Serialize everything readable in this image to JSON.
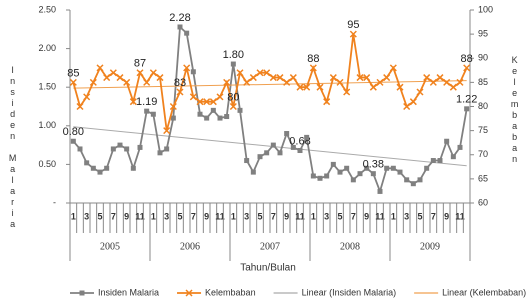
{
  "chart_data": {
    "type": "line",
    "categories": [
      1,
      null,
      3,
      null,
      5,
      null,
      7,
      null,
      9,
      null,
      11,
      null,
      1,
      null,
      3,
      null,
      5,
      null,
      7,
      null,
      9,
      null,
      11,
      null,
      1,
      null,
      3,
      null,
      5,
      null,
      7,
      null,
      9,
      null,
      11,
      null,
      1,
      null,
      3,
      null,
      5,
      null,
      7,
      null,
      9,
      null,
      11,
      null,
      1,
      null,
      3,
      null,
      5,
      null,
      7,
      null,
      9,
      null,
      11,
      null
    ],
    "groups": [
      "2005",
      "2006",
      "2007",
      "2008",
      "2009"
    ],
    "x_label": "Tahun/Bulan",
    "y_label": "Insiden Malaria",
    "y2_label": "Kelembaban",
    "ylim": [
      0,
      2.5
    ],
    "yticks": [
      {
        "value": 0,
        "label": "-"
      },
      {
        "value": 0.5,
        "label": "0.50"
      },
      {
        "value": 1,
        "label": "1.00"
      },
      {
        "value": 1.5,
        "label": "1.50"
      },
      {
        "value": 2,
        "label": "2.00"
      },
      {
        "value": 2.5,
        "label": "2.50"
      }
    ],
    "y2lim": [
      60,
      100
    ],
    "y2ticks": [
      60,
      65,
      70,
      75,
      80,
      85,
      90,
      95,
      100
    ],
    "legend": "bottom",
    "series": [
      {
        "name": "Insiden Malaria",
        "color": "#808080",
        "marker": "square",
        "values": [
          0.8,
          0.7,
          0.52,
          0.45,
          0.4,
          0.45,
          0.7,
          0.75,
          0.7,
          0.45,
          0.72,
          1.19,
          1.15,
          0.65,
          0.7,
          1.1,
          2.28,
          2.2,
          1.7,
          1.15,
          1.1,
          1.2,
          1.1,
          1.12,
          1.8,
          1.2,
          0.55,
          0.4,
          0.6,
          0.65,
          0.75,
          0.65,
          0.9,
          0.72,
          0.68,
          0.85,
          0.35,
          0.32,
          0.35,
          0.5,
          0.4,
          0.45,
          0.3,
          0.38,
          0.45,
          0.38,
          0.15,
          0.45,
          0.45,
          0.4,
          0.3,
          0.25,
          0.3,
          0.45,
          0.55,
          0.55,
          0.8,
          0.6,
          0.72,
          1.22
        ],
        "value_labels": [
          "0.80",
          null,
          null,
          null,
          null,
          null,
          null,
          null,
          null,
          null,
          null,
          "1.19",
          null,
          null,
          null,
          null,
          "2.28",
          null,
          null,
          null,
          null,
          null,
          null,
          null,
          "1.80",
          null,
          null,
          null,
          null,
          null,
          null,
          null,
          null,
          null,
          "0.68",
          null,
          null,
          null,
          null,
          null,
          null,
          null,
          null,
          null,
          null,
          "0.38",
          null,
          null,
          null,
          null,
          null,
          null,
          null,
          null,
          null,
          null,
          null,
          null,
          null,
          "1.22"
        ],
        "trendline": {
          "name": "Linear (Insiden Malaria)",
          "color": "#aaaaaa"
        }
      },
      {
        "name": "Kelembaban",
        "color": "#f0821e",
        "marker": "x",
        "axis": "y2",
        "values": [
          85,
          80,
          82,
          85,
          88,
          86,
          87,
          86,
          85,
          81,
          87,
          85,
          87,
          86,
          75,
          80,
          83,
          88,
          82,
          81,
          81,
          81,
          82,
          85,
          80,
          87,
          85,
          86,
          87,
          87,
          86,
          86,
          85,
          86,
          84,
          84,
          88,
          84,
          81,
          86,
          85,
          83,
          95,
          86,
          86,
          84,
          85,
          86,
          88,
          84,
          80,
          81,
          83,
          86,
          85,
          86,
          85,
          84,
          85,
          88
        ],
        "value_labels": [
          "85",
          null,
          null,
          null,
          null,
          null,
          null,
          null,
          null,
          null,
          "87",
          null,
          null,
          null,
          null,
          null,
          "83",
          null,
          null,
          null,
          null,
          null,
          null,
          null,
          "80",
          null,
          null,
          null,
          null,
          null,
          null,
          null,
          null,
          null,
          null,
          null,
          "88",
          null,
          null,
          null,
          null,
          null,
          "95",
          null,
          null,
          null,
          null,
          null,
          null,
          null,
          null,
          null,
          null,
          null,
          null,
          null,
          null,
          null,
          null,
          "88"
        ],
        "trendline": {
          "name": "Linear (Kelembaban)",
          "color": "#f0a050"
        }
      }
    ]
  }
}
